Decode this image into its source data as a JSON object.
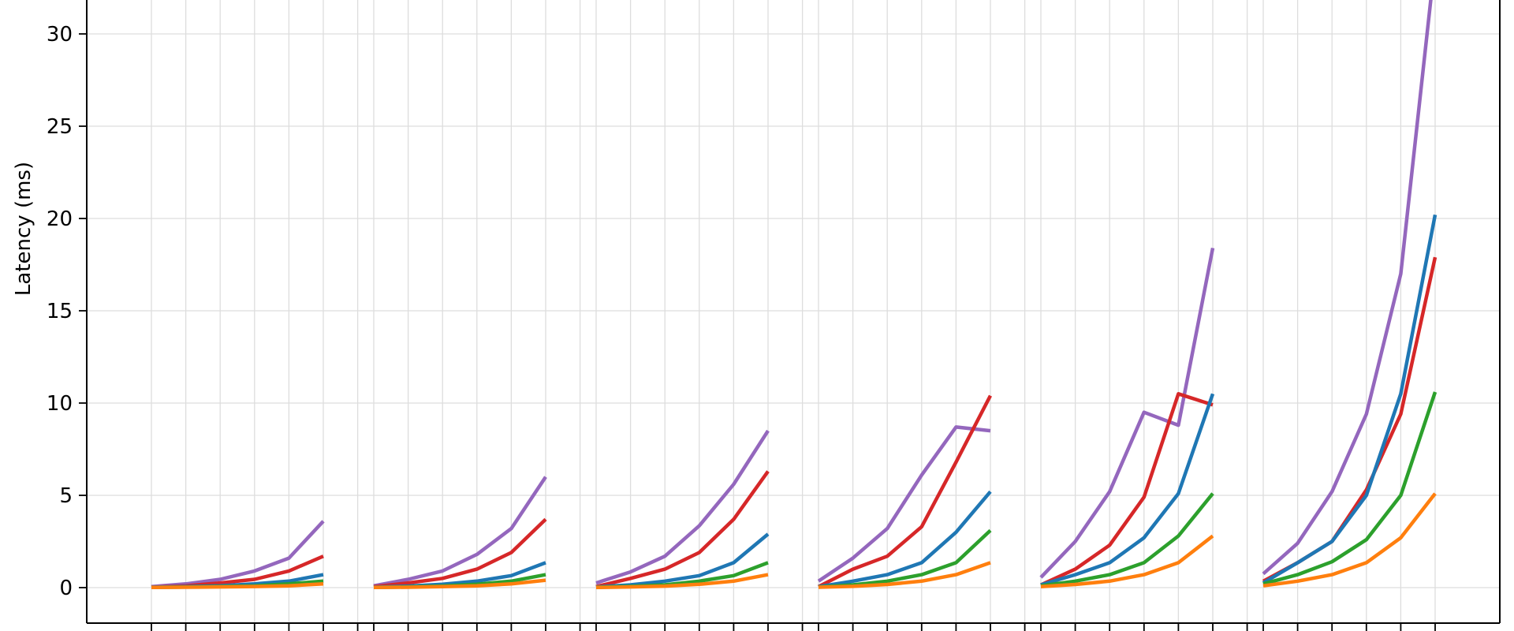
{
  "chart_data": {
    "type": "line",
    "title": "",
    "ylabel": "Latency (ms)",
    "xlabel": "",
    "ylim": [
      -1.9,
      33.5
    ],
    "y_ticks": [
      0,
      5,
      10,
      15,
      20,
      25,
      30
    ],
    "y_tick_labels": [
      "0",
      "5",
      "10",
      "15",
      "20",
      "25",
      "30"
    ],
    "grid": true,
    "legend": "none",
    "colors": {
      "blue": "#1f77b4",
      "orange": "#ff7f0e",
      "green": "#2ca02c",
      "red": "#d62728",
      "purple": "#9467bd",
      "grid": "#dddddd"
    },
    "x_positions_per_group": 6,
    "groups": [
      {
        "series": [
          {
            "color": "purple",
            "values": [
              0.05,
              0.2,
              0.45,
              0.9,
              1.6,
              3.6
            ]
          },
          {
            "color": "red",
            "values": [
              0.02,
              0.1,
              0.25,
              0.45,
              0.9,
              1.7
            ]
          },
          {
            "color": "blue",
            "values": [
              0.02,
              0.05,
              0.1,
              0.2,
              0.35,
              0.7
            ]
          },
          {
            "color": "green",
            "values": [
              0.01,
              0.03,
              0.06,
              0.1,
              0.2,
              0.35
            ]
          },
          {
            "color": "orange",
            "values": [
              0.01,
              0.02,
              0.04,
              0.06,
              0.1,
              0.2
            ]
          }
        ]
      },
      {
        "series": [
          {
            "color": "purple",
            "values": [
              0.1,
              0.45,
              0.9,
              1.8,
              3.2,
              6.0
            ]
          },
          {
            "color": "red",
            "values": [
              0.05,
              0.25,
              0.5,
              1.0,
              1.9,
              3.7
            ]
          },
          {
            "color": "blue",
            "values": [
              0.02,
              0.08,
              0.18,
              0.35,
              0.65,
              1.35
            ]
          },
          {
            "color": "green",
            "values": [
              0.01,
              0.04,
              0.09,
              0.18,
              0.35,
              0.7
            ]
          },
          {
            "color": "orange",
            "values": [
              0.01,
              0.02,
              0.05,
              0.1,
              0.2,
              0.4
            ]
          }
        ]
      },
      {
        "series": [
          {
            "color": "purple",
            "values": [
              0.25,
              0.85,
              1.7,
              3.35,
              5.6,
              8.5
            ]
          },
          {
            "color": "red",
            "values": [
              0.05,
              0.5,
              1.0,
              1.9,
              3.7,
              6.3
            ]
          },
          {
            "color": "blue",
            "values": [
              0.03,
              0.15,
              0.35,
              0.65,
              1.35,
              2.9
            ]
          },
          {
            "color": "green",
            "values": [
              0.02,
              0.07,
              0.15,
              0.35,
              0.65,
              1.35
            ]
          },
          {
            "color": "orange",
            "values": [
              0.01,
              0.04,
              0.08,
              0.18,
              0.35,
              0.7
            ]
          }
        ]
      },
      {
        "series": [
          {
            "color": "purple",
            "values": [
              0.35,
              1.6,
              3.2,
              6.1,
              8.7,
              8.5
            ]
          },
          {
            "color": "red",
            "values": [
              0.05,
              1.0,
              1.7,
              3.3,
              6.8,
              10.4
            ]
          },
          {
            "color": "blue",
            "values": [
              0.05,
              0.35,
              0.7,
              1.35,
              3.0,
              5.2
            ]
          },
          {
            "color": "green",
            "values": [
              0.03,
              0.15,
              0.35,
              0.7,
              1.35,
              3.1
            ]
          },
          {
            "color": "orange",
            "values": [
              0.02,
              0.07,
              0.17,
              0.35,
              0.7,
              1.35
            ]
          }
        ]
      },
      {
        "series": [
          {
            "color": "purple",
            "values": [
              0.55,
              2.5,
              5.2,
              9.5,
              8.8,
              18.4
            ]
          },
          {
            "color": "red",
            "values": [
              0.15,
              1.0,
              2.3,
              4.9,
              10.5,
              9.9
            ]
          },
          {
            "color": "blue",
            "values": [
              0.15,
              0.7,
              1.35,
              2.7,
              5.1,
              10.5
            ]
          },
          {
            "color": "green",
            "values": [
              0.1,
              0.35,
              0.7,
              1.35,
              2.8,
              5.1
            ]
          },
          {
            "color": "orange",
            "values": [
              0.05,
              0.17,
              0.35,
              0.7,
              1.35,
              2.8
            ]
          }
        ]
      },
      {
        "series": [
          {
            "color": "purple",
            "values": [
              0.75,
              2.4,
              5.2,
              9.4,
              17.0,
              34.0
            ]
          },
          {
            "color": "red",
            "values": [
              0.35,
              1.35,
              2.5,
              5.3,
              9.4,
              17.9
            ]
          },
          {
            "color": "blue",
            "values": [
              0.25,
              1.35,
              2.5,
              5.0,
              10.5,
              20.2
            ]
          },
          {
            "color": "green",
            "values": [
              0.2,
              0.7,
              1.4,
              2.6,
              5.0,
              10.6
            ]
          },
          {
            "color": "orange",
            "values": [
              0.1,
              0.35,
              0.7,
              1.35,
              2.7,
              5.1
            ]
          }
        ]
      }
    ]
  }
}
